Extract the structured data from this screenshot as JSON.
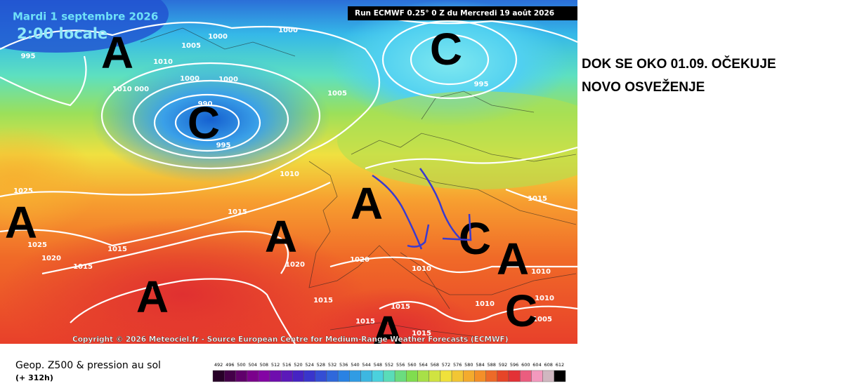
{
  "header": {
    "date": "Mardi 1 septembre 2026",
    "time": "2:00 locale",
    "run": "Run ECMWF 0.25° 0 Z du Mercredi 19 août 2026"
  },
  "annotation": {
    "line1": "DOK SE OKO 01.09. OČEKUJE",
    "line2": "NOVO OSVEŽENJE"
  },
  "copyright": "Copyright © 2026 Meteociel.fr - Source European Centre for Medium-Range Weather Forecasts (ECMWF)",
  "footer": {
    "title": "Geop. Z500 & pression au sol",
    "lead": "(+ 312h)"
  },
  "colorbar": {
    "ticks": [
      492,
      496,
      500,
      504,
      508,
      512,
      516,
      520,
      524,
      528,
      532,
      536,
      540,
      544,
      548,
      552,
      556,
      560,
      564,
      568,
      572,
      576,
      580,
      584,
      588,
      592,
      596,
      600,
      604,
      608,
      612
    ]
  },
  "systems": [
    "A",
    "C",
    "C",
    "A",
    "A",
    "A",
    "C",
    "A",
    "A",
    "A",
    "C"
  ],
  "isobars": [
    "995",
    "1000",
    "1005",
    "1010",
    "1010 000",
    "1000",
    "1000",
    "990",
    "995",
    "1000",
    "1005",
    "995",
    "1010",
    "1025",
    "1015",
    "1025",
    "1015",
    "1020",
    "1015",
    "1020",
    "1020",
    "1010",
    "1015",
    "1015",
    "1010",
    "1010",
    "1015",
    "1015",
    "1015",
    "1005",
    "1010"
  ]
}
